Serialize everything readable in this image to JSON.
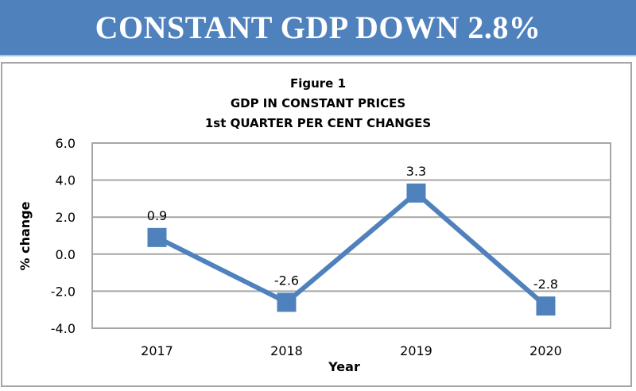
{
  "banner": {
    "title": "CONSTANT GDP DOWN 2.8%"
  },
  "colors": {
    "banner": "#4f81bd",
    "series": "#4f81bd",
    "grid": "#a6a6a6"
  },
  "chart_data": {
    "type": "line",
    "title_lines": [
      "Figure 1",
      "GDP IN CONSTANT PRICES",
      "1st QUARTER PER CENT CHANGES"
    ],
    "categories": [
      "2017",
      "2018",
      "2019",
      "2020"
    ],
    "series": [
      {
        "name": "% change",
        "values": [
          0.9,
          -2.6,
          3.3,
          -2.8
        ],
        "labels": [
          "0.9",
          "-2.6",
          "3.3",
          "-2.8"
        ],
        "marker": "square"
      }
    ],
    "xlabel": "Year",
    "ylabel": "%  change",
    "ylim": [
      -4.0,
      6.0
    ],
    "yticks": [
      6.0,
      4.0,
      2.0,
      0.0,
      -2.0,
      -4.0
    ],
    "ytick_labels": [
      "6.0",
      "4.0",
      "2.0",
      "0.0",
      "-2.0",
      "-4.0"
    ],
    "grid": true,
    "legend": "none"
  }
}
